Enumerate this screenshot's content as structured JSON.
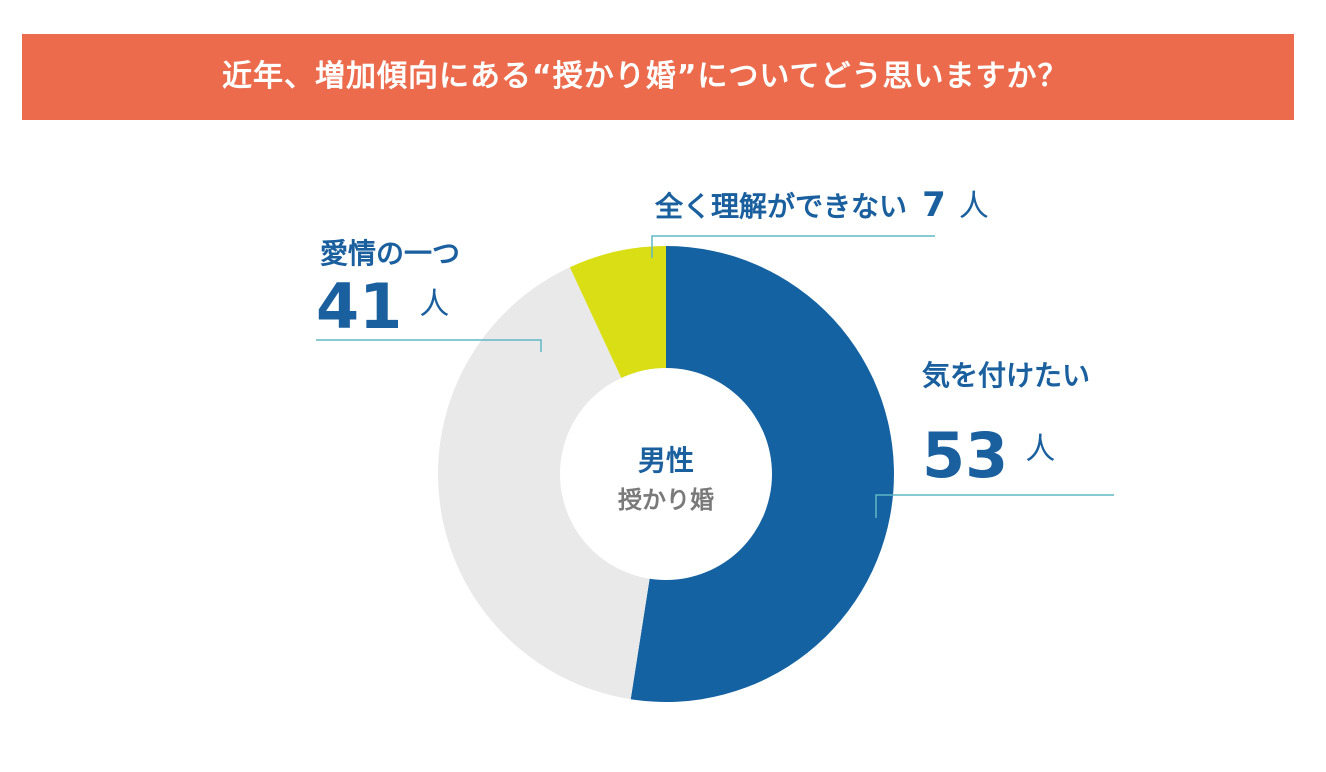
{
  "header": {
    "title": "近年、増加傾向にある“授かり婚”についてどう思いますか？",
    "bg_color": "#ec6b4c"
  },
  "chart_data": {
    "type": "pie",
    "title": "近年、増加傾向にある“授かり婚”についてどう思いますか？",
    "donut": true,
    "center_label": "男性",
    "center_sublabel": "授かり婚",
    "unit": "人",
    "slices": [
      {
        "label": "気を付けたい",
        "value": 53,
        "color": "#1462a1"
      },
      {
        "label": "愛情の一つ",
        "value": 41,
        "color": "#e9e9e9"
      },
      {
        "label": "全く理解ができない",
        "value": 7,
        "color": "#d9df14"
      }
    ]
  }
}
